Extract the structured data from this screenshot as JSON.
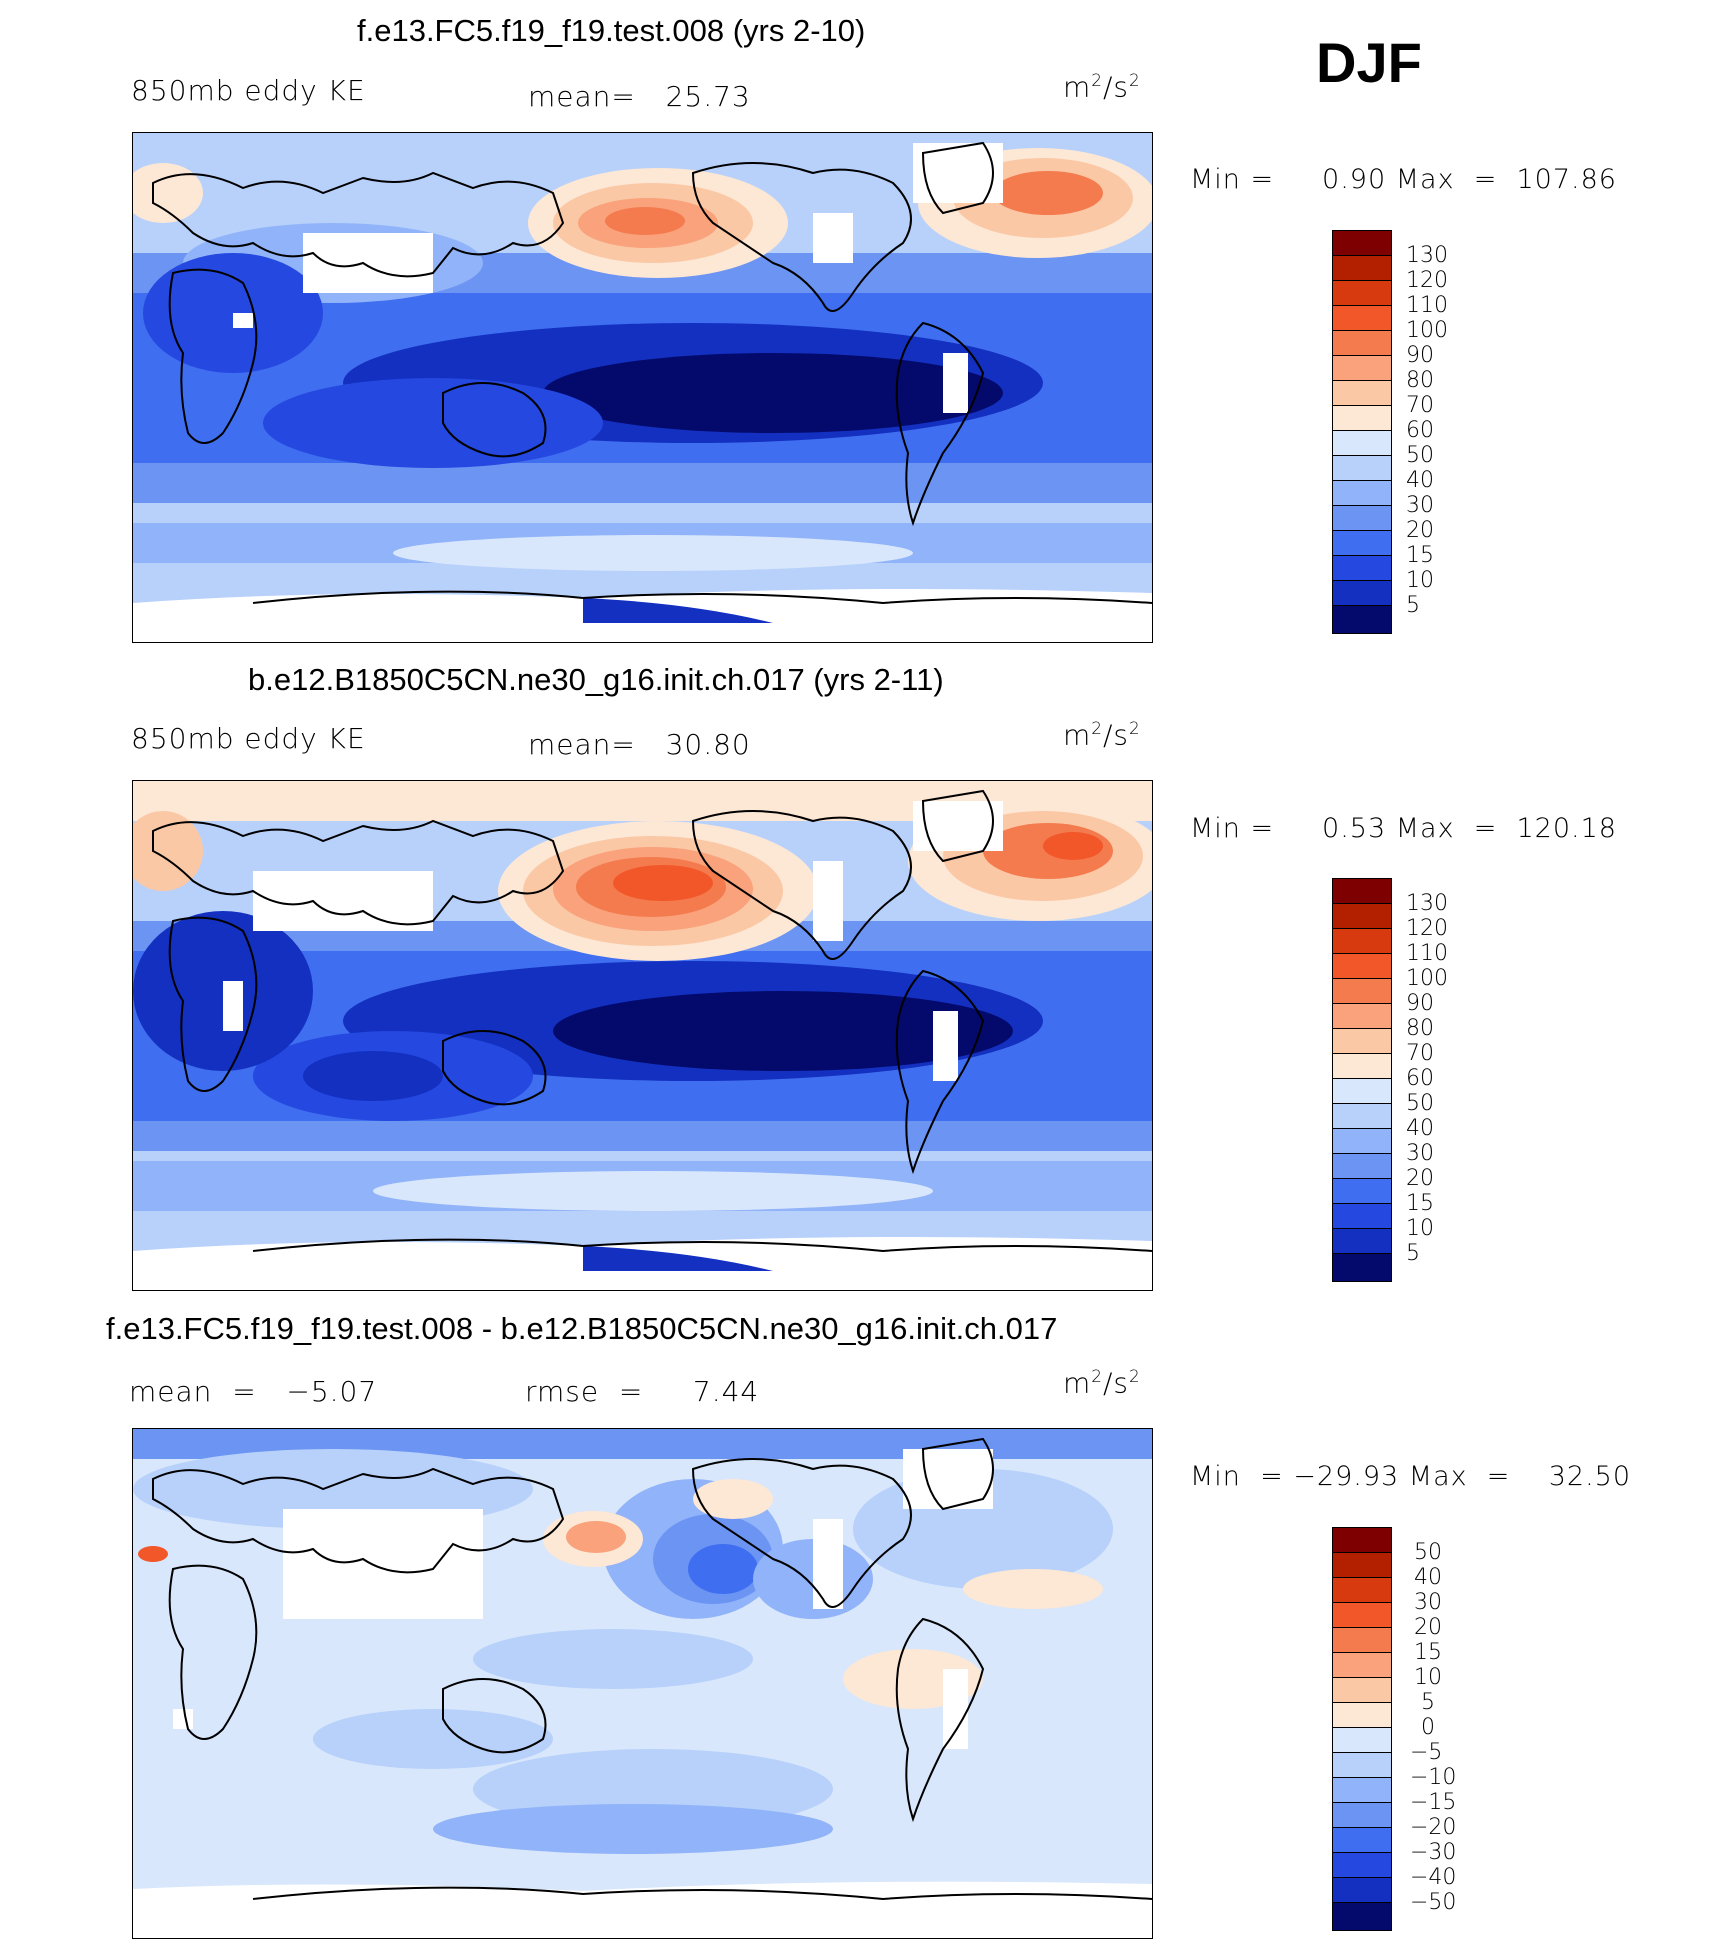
{
  "season": "DJF",
  "panels": [
    {
      "title": "f.e13.FC5.f19_f19.test.008 (yrs 2-10)",
      "left_label": "850mb eddy KE",
      "center_label": "mean=   25.73",
      "units": "m2/s2",
      "minmax": "Min =     0.90 Max  =  107.86",
      "colorbar_labels": [
        "130",
        "120",
        "110",
        "100",
        "90",
        "80",
        "70",
        "60",
        "50",
        "40",
        "30",
        "20",
        "15",
        "10",
        "5"
      ]
    },
    {
      "title": "b.e12.B1850C5CN.ne30_g16.init.ch.017 (yrs 2-11)",
      "left_label": "850mb eddy KE",
      "center_label": "mean=   30.80",
      "units": "m2/s2",
      "minmax": "Min =     0.53 Max  =  120.18",
      "colorbar_labels": [
        "130",
        "120",
        "110",
        "100",
        "90",
        "80",
        "70",
        "60",
        "50",
        "40",
        "30",
        "20",
        "15",
        "10",
        "5"
      ]
    },
    {
      "title": "f.e13.FC5.f19_f19.test.008 - b.e12.B1850C5CN.ne30_g16.init.ch.017",
      "left_label": "mean  =   −5.07",
      "center_label": "rmse  =     7.44",
      "units": "m2/s2",
      "minmax": "Min  = −29.93 Max  =    32.50",
      "colorbar_labels": [
        "50",
        "40",
        "30",
        "20",
        "15",
        "10",
        "5",
        "0",
        "−5",
        "−10",
        "−15",
        "−20",
        "−30",
        "−40",
        "−50"
      ]
    }
  ],
  "colors": {
    "ramp": [
      "#7f0000",
      "#b22000",
      "#d83a0f",
      "#f2572a",
      "#f47b4e",
      "#f9a27c",
      "#fbc8a6",
      "#fde7d5",
      "#d8e7fb",
      "#b7d1fb",
      "#91b3f9",
      "#6b94f3",
      "#3f6ef0",
      "#2448e0",
      "#1330c0",
      "#0b1b97",
      "#040a6b"
    ],
    "land_outline": "#000000"
  }
}
